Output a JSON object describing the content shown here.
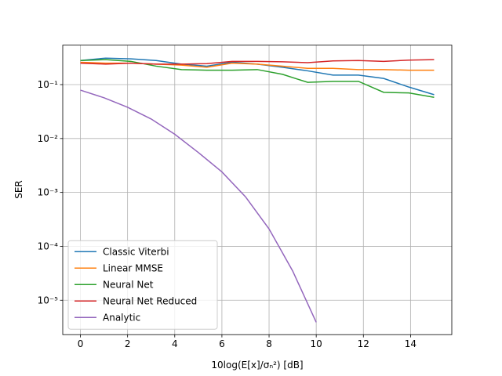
{
  "chart_data": {
    "type": "line",
    "xlabel": "10log(E[x]/σₙ²) [dB]",
    "ylabel": "SER",
    "x": [
      0,
      1.07,
      2.14,
      3.21,
      4.29,
      5.36,
      6.43,
      7.5,
      8.57,
      9.64,
      10.71,
      11.79,
      12.86,
      13.93,
      15
    ],
    "series": [
      {
        "name": "Classic Viterbi",
        "color": "#1f77b4",
        "values": [
          0.28,
          0.31,
          0.3,
          0.28,
          0.24,
          0.22,
          0.26,
          0.24,
          0.21,
          0.18,
          0.15,
          0.15,
          0.13,
          0.09,
          0.065
        ]
      },
      {
        "name": "Linear MMSE",
        "color": "#ff7f0e",
        "values": [
          0.26,
          0.25,
          0.25,
          0.24,
          0.23,
          0.21,
          0.25,
          0.24,
          0.22,
          0.2,
          0.2,
          0.19,
          0.19,
          0.185,
          0.185
        ]
      },
      {
        "name": "Neural Net",
        "color": "#2ca02c",
        "values": [
          0.28,
          0.29,
          0.27,
          0.22,
          0.19,
          0.185,
          0.185,
          0.19,
          0.155,
          0.11,
          0.115,
          0.115,
          0.072,
          0.07,
          0.058
        ]
      },
      {
        "name": "Neural Net Reduced",
        "color": "#d62728",
        "values": [
          0.25,
          0.24,
          0.25,
          0.24,
          0.24,
          0.245,
          0.27,
          0.27,
          0.265,
          0.255,
          0.275,
          0.28,
          0.27,
          0.285,
          0.29
        ]
      },
      {
        "name": "Analytic",
        "color": "#9467bd",
        "x": [
          0,
          1,
          2,
          3,
          4,
          5,
          6,
          7,
          8,
          9,
          10
        ],
        "values": [
          0.079,
          0.057,
          0.038,
          0.023,
          0.012,
          0.0055,
          0.0024,
          0.00083,
          0.00021,
          3.5e-05,
          3.9e-06
        ]
      }
    ],
    "xlim": [
      -0.75,
      15.75
    ],
    "xticks": [
      0,
      2,
      4,
      6,
      8,
      10,
      12,
      14
    ],
    "ylim": [
      2.3e-06,
      0.54
    ],
    "yticks": [
      {
        "value": 1e-05,
        "label": "10⁻⁵"
      },
      {
        "value": 0.0001,
        "label": "10⁻⁴"
      },
      {
        "value": 0.001,
        "label": "10⁻³"
      },
      {
        "value": 0.01,
        "label": "10⁻²"
      },
      {
        "value": 0.1,
        "label": "10⁻¹"
      }
    ],
    "log_y": true,
    "grid": true,
    "legend": "lower-left"
  }
}
